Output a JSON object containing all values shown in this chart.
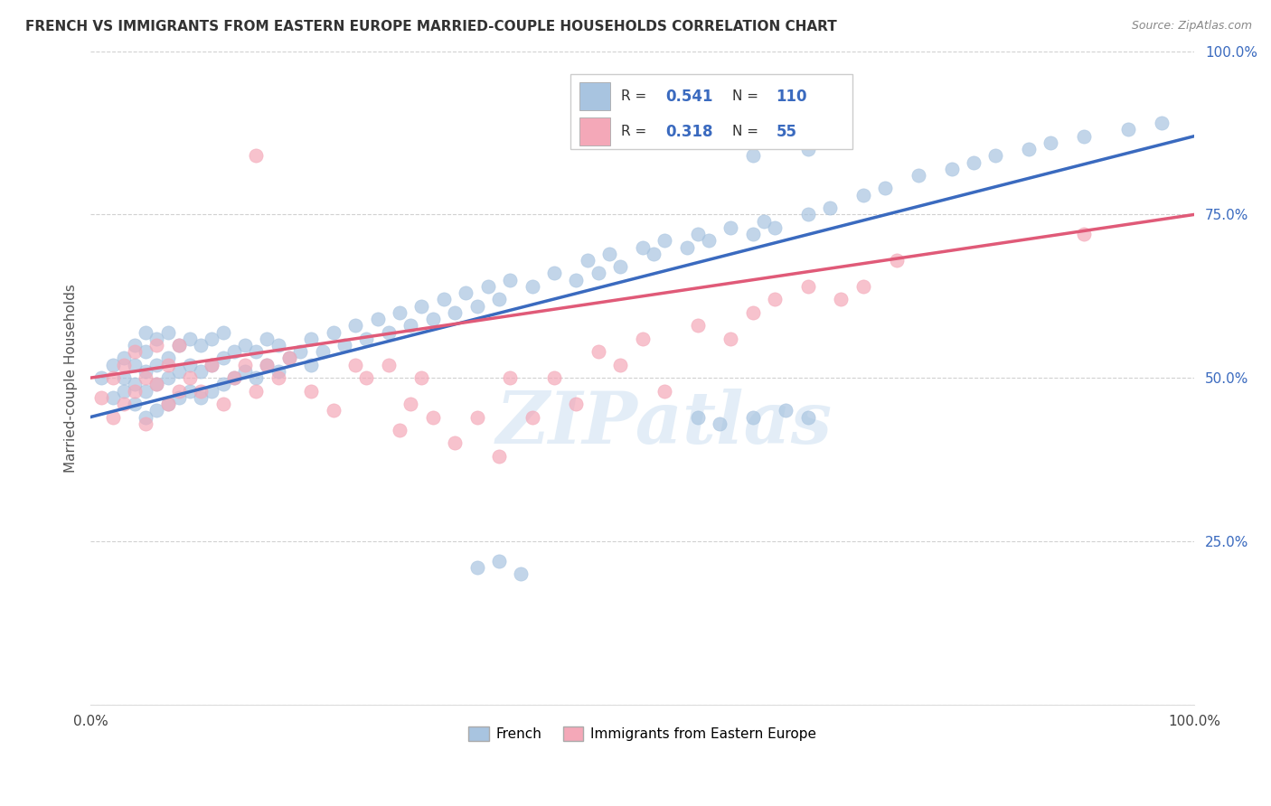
{
  "title": "FRENCH VS IMMIGRANTS FROM EASTERN EUROPE MARRIED-COUPLE HOUSEHOLDS CORRELATION CHART",
  "source": "Source: ZipAtlas.com",
  "ylabel": "Married-couple Households",
  "x_min": 0.0,
  "x_max": 1.0,
  "y_min": 0.0,
  "y_max": 1.0,
  "y_ticks": [
    0.0,
    0.25,
    0.5,
    0.75,
    1.0
  ],
  "y_tick_labels": [
    "",
    "25.0%",
    "50.0%",
    "75.0%",
    "100.0%"
  ],
  "x_tick_positions": [
    0.0,
    0.1,
    0.2,
    0.3,
    0.4,
    0.5,
    0.6,
    0.7,
    0.8,
    0.9,
    1.0
  ],
  "x_tick_labels": [
    "0.0%",
    "",
    "",
    "",
    "",
    "",
    "",
    "",
    "",
    "",
    "100.0%"
  ],
  "blue_R": 0.541,
  "blue_N": 110,
  "pink_R": 0.318,
  "pink_N": 55,
  "blue_color": "#a8c4e0",
  "pink_color": "#f4a8b8",
  "blue_line_color": "#3a6abf",
  "pink_line_color": "#e05a78",
  "legend_blue_label": "French",
  "legend_pink_label": "Immigrants from Eastern Europe",
  "watermark": "ZIPatlas",
  "background_color": "#ffffff",
  "grid_color": "#cccccc",
  "blue_line_start_y": 0.44,
  "blue_line_end_y": 0.87,
  "pink_line_start_y": 0.5,
  "pink_line_end_y": 0.75,
  "blue_x": [
    0.01,
    0.02,
    0.02,
    0.03,
    0.03,
    0.03,
    0.04,
    0.04,
    0.04,
    0.04,
    0.05,
    0.05,
    0.05,
    0.05,
    0.05,
    0.06,
    0.06,
    0.06,
    0.06,
    0.07,
    0.07,
    0.07,
    0.07,
    0.08,
    0.08,
    0.08,
    0.09,
    0.09,
    0.09,
    0.1,
    0.1,
    0.1,
    0.11,
    0.11,
    0.11,
    0.12,
    0.12,
    0.12,
    0.13,
    0.13,
    0.14,
    0.14,
    0.15,
    0.15,
    0.16,
    0.16,
    0.17,
    0.17,
    0.18,
    0.19,
    0.2,
    0.2,
    0.21,
    0.22,
    0.23,
    0.24,
    0.25,
    0.26,
    0.27,
    0.28,
    0.29,
    0.3,
    0.31,
    0.32,
    0.33,
    0.34,
    0.35,
    0.36,
    0.37,
    0.38,
    0.4,
    0.42,
    0.44,
    0.45,
    0.46,
    0.47,
    0.48,
    0.5,
    0.51,
    0.52,
    0.54,
    0.55,
    0.56,
    0.58,
    0.6,
    0.61,
    0.62,
    0.65,
    0.67,
    0.7,
    0.72,
    0.75,
    0.78,
    0.8,
    0.82,
    0.85,
    0.87,
    0.9,
    0.94,
    0.97,
    0.6,
    0.65,
    0.35,
    0.37,
    0.39,
    0.55,
    0.57,
    0.6,
    0.63,
    0.65
  ],
  "blue_y": [
    0.5,
    0.47,
    0.52,
    0.48,
    0.5,
    0.53,
    0.46,
    0.49,
    0.52,
    0.55,
    0.44,
    0.48,
    0.51,
    0.54,
    0.57,
    0.45,
    0.49,
    0.52,
    0.56,
    0.46,
    0.5,
    0.53,
    0.57,
    0.47,
    0.51,
    0.55,
    0.48,
    0.52,
    0.56,
    0.47,
    0.51,
    0.55,
    0.48,
    0.52,
    0.56,
    0.49,
    0.53,
    0.57,
    0.5,
    0.54,
    0.51,
    0.55,
    0.5,
    0.54,
    0.52,
    0.56,
    0.51,
    0.55,
    0.53,
    0.54,
    0.52,
    0.56,
    0.54,
    0.57,
    0.55,
    0.58,
    0.56,
    0.59,
    0.57,
    0.6,
    0.58,
    0.61,
    0.59,
    0.62,
    0.6,
    0.63,
    0.61,
    0.64,
    0.62,
    0.65,
    0.64,
    0.66,
    0.65,
    0.68,
    0.66,
    0.69,
    0.67,
    0.7,
    0.69,
    0.71,
    0.7,
    0.72,
    0.71,
    0.73,
    0.72,
    0.74,
    0.73,
    0.75,
    0.76,
    0.78,
    0.79,
    0.81,
    0.82,
    0.83,
    0.84,
    0.85,
    0.86,
    0.87,
    0.88,
    0.89,
    0.84,
    0.85,
    0.21,
    0.22,
    0.2,
    0.44,
    0.43,
    0.44,
    0.45,
    0.44
  ],
  "pink_x": [
    0.01,
    0.02,
    0.02,
    0.03,
    0.03,
    0.04,
    0.04,
    0.05,
    0.05,
    0.06,
    0.06,
    0.07,
    0.07,
    0.08,
    0.08,
    0.09,
    0.1,
    0.11,
    0.12,
    0.13,
    0.14,
    0.15,
    0.16,
    0.17,
    0.18,
    0.2,
    0.22,
    0.24,
    0.25,
    0.27,
    0.28,
    0.29,
    0.3,
    0.31,
    0.33,
    0.35,
    0.37,
    0.38,
    0.4,
    0.42,
    0.44,
    0.46,
    0.48,
    0.5,
    0.52,
    0.55,
    0.58,
    0.6,
    0.62,
    0.65,
    0.68,
    0.7,
    0.73,
    0.9,
    0.15
  ],
  "pink_y": [
    0.47,
    0.44,
    0.5,
    0.46,
    0.52,
    0.48,
    0.54,
    0.5,
    0.43,
    0.49,
    0.55,
    0.46,
    0.52,
    0.48,
    0.55,
    0.5,
    0.48,
    0.52,
    0.46,
    0.5,
    0.52,
    0.48,
    0.52,
    0.5,
    0.53,
    0.48,
    0.45,
    0.52,
    0.5,
    0.52,
    0.42,
    0.46,
    0.5,
    0.44,
    0.4,
    0.44,
    0.38,
    0.5,
    0.44,
    0.5,
    0.46,
    0.54,
    0.52,
    0.56,
    0.48,
    0.58,
    0.56,
    0.6,
    0.62,
    0.64,
    0.62,
    0.64,
    0.68,
    0.72,
    0.84
  ]
}
